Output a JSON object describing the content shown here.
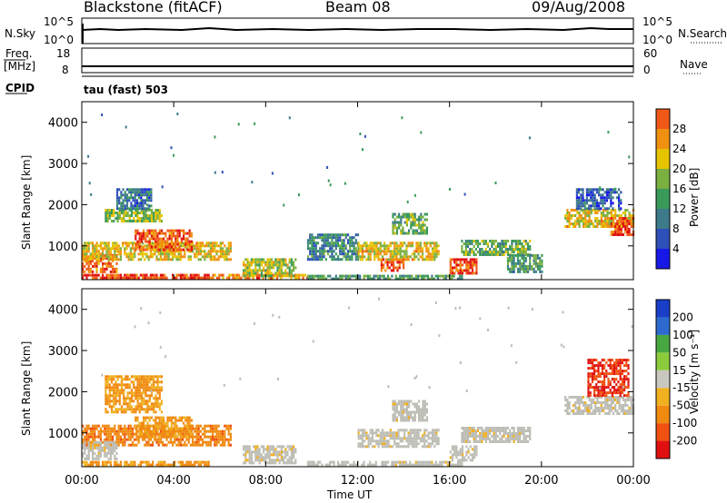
{
  "header": {
    "station": "Blackstone (fitACF)",
    "beam": "Beam 08",
    "date": "09/Aug/2008"
  },
  "panels": {
    "nsky_label": "N.Sky",
    "nsky_ticks": [
      "10^5",
      "10^0"
    ],
    "nsearch_label": "N.Search",
    "nsearch_ticks": [
      "10^5",
      "10^0"
    ],
    "freq_label": "Freq.",
    "freq_unit": "[MHz]",
    "freq_ticks": [
      "18",
      "8"
    ],
    "nave_label": "Nave",
    "nave_ticks": [
      "60",
      "0"
    ],
    "cpid_label": "CPID",
    "cpid_text": "tau (fast) 503"
  },
  "colors": {
    "power_scale": [
      "#1818e6",
      "#2e50b8",
      "#3d7a8a",
      "#3a9a5a",
      "#7ab040",
      "#e6c400",
      "#f09010",
      "#f05818",
      "#e01010"
    ],
    "velocity_scale": [
      "#1a3ec8",
      "#2d6ad0",
      "#48a840",
      "#8ccc3c",
      "#c8c8c0",
      "#f0b020",
      "#f08a10",
      "#f05010",
      "#e01010"
    ],
    "ground_scatter": "#bdbdb6"
  },
  "chart_data": [
    {
      "type": "heatmap",
      "name": "Power",
      "xlabel": "",
      "ylabel": "Slant Range [km]",
      "xlim": [
        0,
        24
      ],
      "ylim": [
        180,
        4500
      ],
      "xticks": [
        "00:00",
        "04:00",
        "08:00",
        "12:00",
        "16:00",
        "20:00",
        "00:00"
      ],
      "yticks": [
        "1000",
        "2000",
        "3000",
        "4000"
      ],
      "ytick_values": [
        1000,
        2000,
        3000,
        4000
      ],
      "colorbar": {
        "label": "Power [dB]",
        "range": [
          0,
          32
        ],
        "ticks": [
          "4",
          "8",
          "12",
          "16",
          "20",
          "24",
          "28"
        ],
        "tick_values": [
          4,
          8,
          12,
          16,
          20,
          24,
          28
        ]
      },
      "regions": [
        {
          "t": [
            0.0,
            5.5
          ],
          "r": [
            200,
            320
          ],
          "level": 28
        },
        {
          "t": [
            5.5,
            9.8
          ],
          "r": [
            200,
            320
          ],
          "level": 24
        },
        {
          "t": [
            9.8,
            16.5
          ],
          "r": [
            220,
            300
          ],
          "level": 12
        },
        {
          "t": [
            0.0,
            1.5
          ],
          "r": [
            400,
            800
          ],
          "level": 26
        },
        {
          "t": [
            0.0,
            6.5
          ],
          "r": [
            700,
            1100
          ],
          "level": 20
        },
        {
          "t": [
            2.3,
            4.8
          ],
          "r": [
            900,
            1400
          ],
          "level": 26
        },
        {
          "t": [
            1.0,
            3.5
          ],
          "r": [
            1600,
            1900
          ],
          "level": 16
        },
        {
          "t": [
            1.5,
            3.0
          ],
          "r": [
            1900,
            2400
          ],
          "level": 8
        },
        {
          "t": [
            7.0,
            9.3
          ],
          "r": [
            300,
            700
          ],
          "level": 18
        },
        {
          "t": [
            9.8,
            12.0
          ],
          "r": [
            700,
            1300
          ],
          "level": 10
        },
        {
          "t": [
            12.0,
            15.5
          ],
          "r": [
            700,
            1100
          ],
          "level": 20
        },
        {
          "t": [
            13.5,
            15.0
          ],
          "r": [
            1300,
            1800
          ],
          "level": 14
        },
        {
          "t": [
            13.0,
            14.0
          ],
          "r": [
            400,
            700
          ],
          "level": 26
        },
        {
          "t": [
            16.0,
            17.2
          ],
          "r": [
            350,
            700
          ],
          "level": 28
        },
        {
          "t": [
            16.5,
            19.5
          ],
          "r": [
            800,
            1150
          ],
          "level": 14
        },
        {
          "t": [
            18.5,
            20.0
          ],
          "r": [
            400,
            800
          ],
          "level": 12
        },
        {
          "t": [
            21.0,
            24.0
          ],
          "r": [
            1500,
            1900
          ],
          "level": 20
        },
        {
          "t": [
            23.0,
            24.0
          ],
          "r": [
            1300,
            1700
          ],
          "level": 28
        },
        {
          "t": [
            21.5,
            23.5
          ],
          "r": [
            1900,
            2400
          ],
          "level": 6
        }
      ]
    },
    {
      "type": "heatmap",
      "name": "Velocity",
      "xlabel": "Time UT",
      "ylabel": "Slant Range [km]",
      "xlim": [
        0,
        24
      ],
      "ylim": [
        180,
        4500
      ],
      "xticks": [
        "00:00",
        "04:00",
        "08:00",
        "12:00",
        "16:00",
        "20:00",
        "00:00"
      ],
      "yticks": [
        "1000",
        "2000",
        "3000",
        "4000"
      ],
      "ytick_values": [
        1000,
        2000,
        3000,
        4000
      ],
      "colorbar": {
        "label": "Velocity [m s⁻¹]",
        "range": [
          -250,
          250
        ],
        "ticks": [
          "200",
          "100",
          "50",
          "15",
          "-15",
          "-50",
          "-100",
          "-200"
        ]
      },
      "regions": [
        {
          "t": [
            0.0,
            6.5
          ],
          "r": [
            700,
            1200
          ],
          "v": -80
        },
        {
          "t": [
            2.3,
            4.8
          ],
          "r": [
            900,
            1400
          ],
          "v": -60
        },
        {
          "t": [
            1.0,
            3.5
          ],
          "r": [
            1500,
            2400
          ],
          "v": -60
        },
        {
          "t": [
            0.0,
            1.5
          ],
          "r": [
            400,
            800
          ],
          "v": 0
        },
        {
          "t": [
            0.0,
            5.5
          ],
          "r": [
            200,
            320
          ],
          "v": -60
        },
        {
          "t": [
            7.0,
            9.3
          ],
          "r": [
            300,
            700
          ],
          "v": 0
        },
        {
          "t": [
            9.8,
            16.5
          ],
          "r": [
            220,
            320
          ],
          "v": 0
        },
        {
          "t": [
            12.0,
            15.5
          ],
          "r": [
            700,
            1100
          ],
          "v": 0
        },
        {
          "t": [
            13.5,
            15.0
          ],
          "r": [
            1300,
            1800
          ],
          "v": 0
        },
        {
          "t": [
            16.0,
            17.2
          ],
          "r": [
            350,
            700
          ],
          "v": 0
        },
        {
          "t": [
            16.5,
            19.5
          ],
          "r": [
            800,
            1150
          ],
          "v": 0
        },
        {
          "t": [
            21.0,
            24.0
          ],
          "r": [
            1500,
            1900
          ],
          "v": 0
        },
        {
          "t": [
            22.0,
            23.8
          ],
          "r": [
            1900,
            2800
          ],
          "v": -200
        }
      ]
    }
  ]
}
